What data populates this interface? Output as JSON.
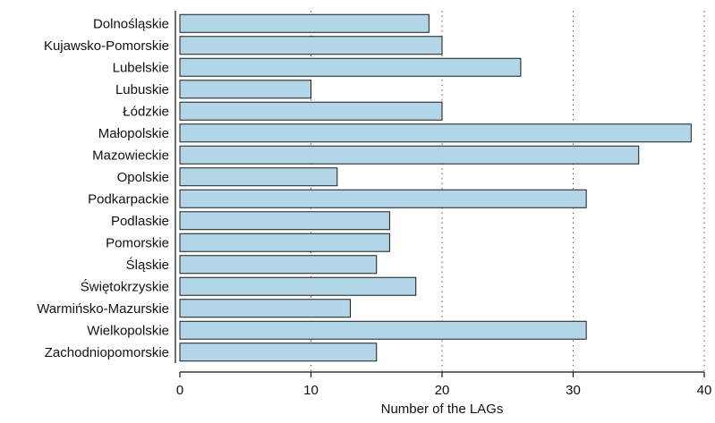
{
  "chart_data": {
    "type": "bar",
    "orientation": "horizontal",
    "title": "",
    "xlabel": "Number of the LAGs",
    "ylabel": "",
    "xlim": [
      0,
      40
    ],
    "x_ticks": [
      0,
      10,
      20,
      30,
      40
    ],
    "grid": "vertical dotted",
    "bar_color": "#b3d5e8",
    "bar_edge_color": "#1a1a1a",
    "categories": [
      "Dolnośląskie",
      "Kujawsko-Pomorskie",
      "Lubelskie",
      "Lubuskie",
      "Łódzkie",
      "Małopolskie",
      "Mazowieckie",
      "Opolskie",
      "Podkarpackie",
      "Podlaskie",
      "Pomorskie",
      "Śląskie",
      "Świętokrzyskie",
      "Warmińsko-Mazurskie",
      "Wielkopolskie",
      "Zachodniopomorskie"
    ],
    "values": [
      19,
      20,
      26,
      10,
      20,
      39,
      35,
      12,
      31,
      16,
      16,
      15,
      18,
      13,
      31,
      15
    ]
  }
}
